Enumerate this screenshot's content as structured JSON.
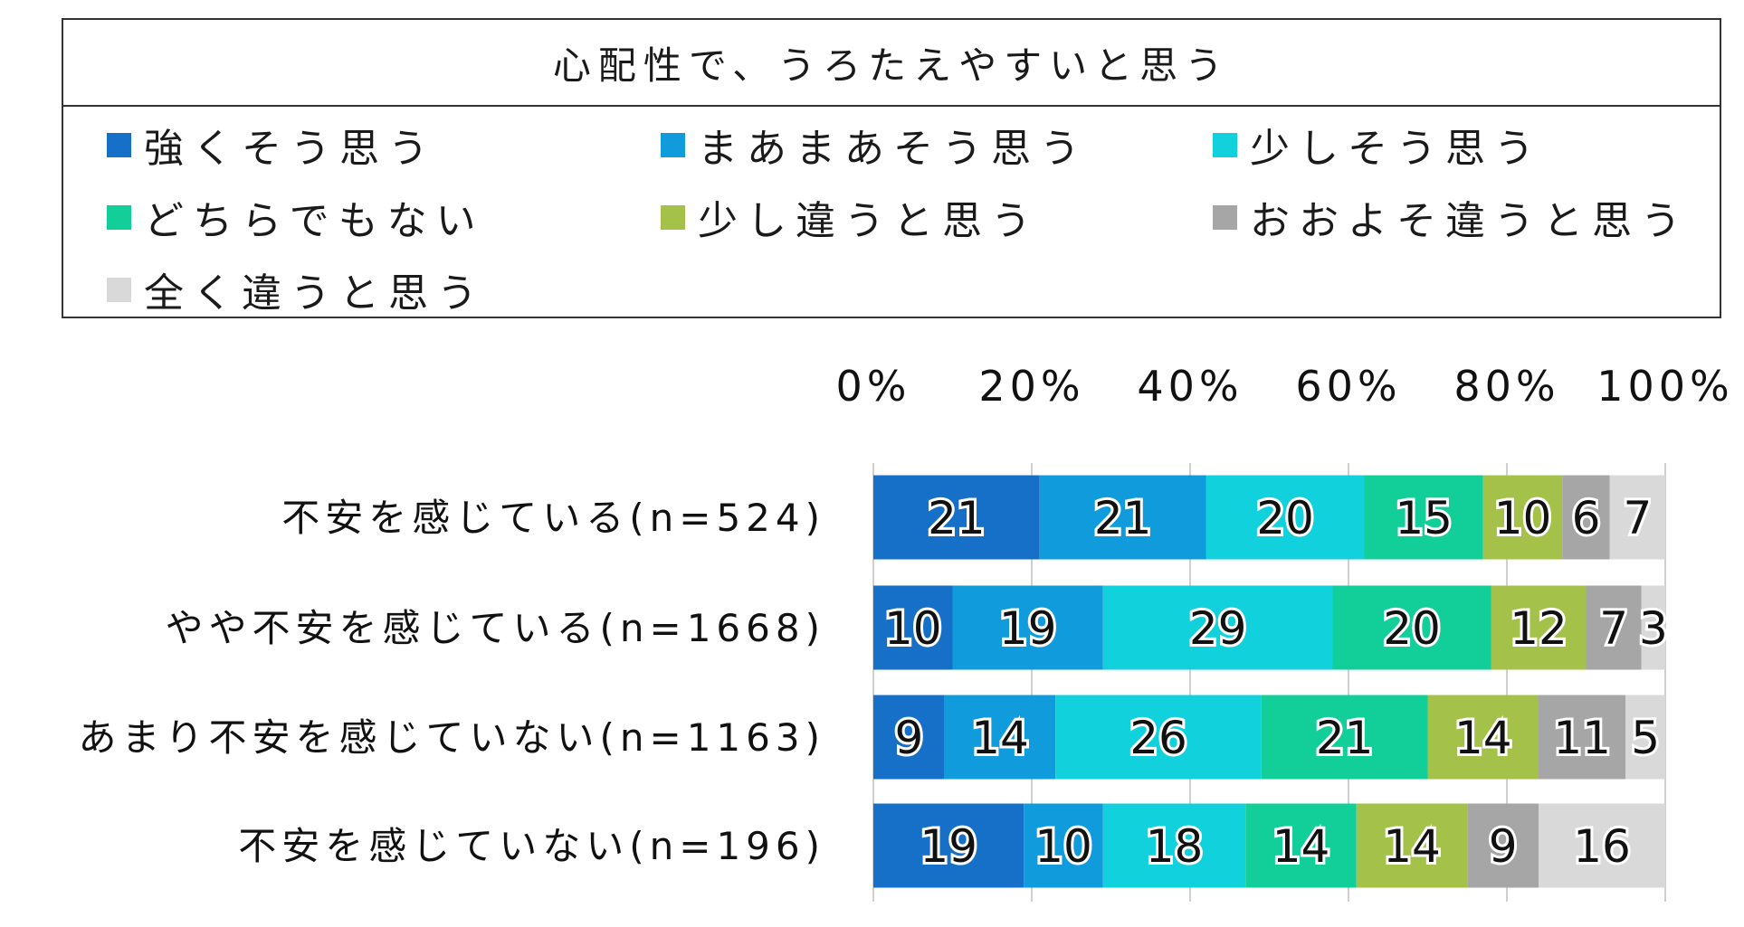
{
  "chart_data": {
    "type": "bar",
    "orientation": "horizontal",
    "stacked": "percent",
    "title": "心配性で、うろたえやすいと思う",
    "legend_position": "top",
    "xlim": [
      0,
      100
    ],
    "x_ticks": [
      "0%",
      "20%",
      "40%",
      "60%",
      "80%",
      "100%"
    ],
    "grid": true,
    "categories": [
      "不安を感じている(n=524)",
      "やや不安を感じている(n=1668)",
      "あまり不安を感じていない(n=1163)",
      "不安を感じていない(n=196)"
    ],
    "series": [
      {
        "name": "強くそう思う",
        "color": "#1670C8",
        "values": [
          21,
          10,
          9,
          19
        ]
      },
      {
        "name": "まあまあそう思う",
        "color": "#0F9BDC",
        "values": [
          21,
          19,
          14,
          10
        ]
      },
      {
        "name": "少しそう思う",
        "color": "#10D1DC",
        "values": [
          20,
          29,
          26,
          18
        ]
      },
      {
        "name": "どちらでもない",
        "color": "#12CF9A",
        "values": [
          15,
          20,
          21,
          14
        ]
      },
      {
        "name": "少し違うと思う",
        "color": "#A4C24A",
        "values": [
          10,
          12,
          14,
          14
        ]
      },
      {
        "name": "おおよそ違うと思う",
        "color": "#A6A6A6",
        "values": [
          6,
          7,
          11,
          9
        ]
      },
      {
        "name": "全く違うと思う",
        "color": "#D9D9D9",
        "values": [
          7,
          3,
          5,
          16
        ]
      }
    ]
  }
}
